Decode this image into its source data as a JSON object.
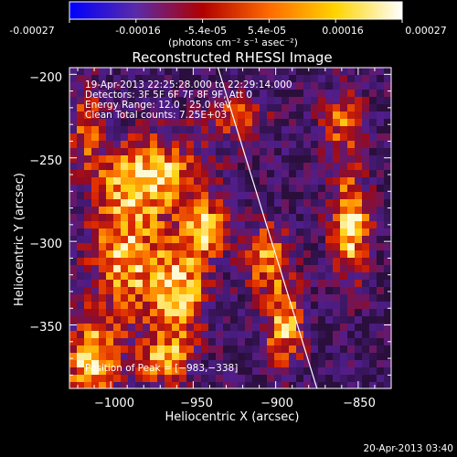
{
  "colorbar": {
    "tick_labels": [
      "-0.00027",
      "-0.00016",
      "-5.4e-05",
      "5.4e-05",
      "0.00016",
      "0.00027"
    ],
    "units_label": "(photons cm⁻² s⁻¹ asec⁻²)",
    "range": [
      -0.00027,
      0.00027
    ],
    "colormap": [
      "#0000ff",
      "#5a2aa8",
      "#b00000",
      "#ff6a00",
      "#ffd400",
      "#ffffff"
    ]
  },
  "chart_data": {
    "type": "heatmap",
    "title": "Reconstructed RHESSI Image",
    "xlabel": "Heliocentric X (arcsec)",
    "ylabel": "Heliocentric Y (arcsec)",
    "xlim": [
      -1025,
      -830
    ],
    "ylim": [
      -388,
      -196
    ],
    "x_ticks": [
      -1000,
      -950,
      -900,
      -850
    ],
    "y_ticks": [
      -200,
      -250,
      -300,
      -350
    ],
    "x_tick_labels": [
      "−1000",
      "−950",
      "−900",
      "−850"
    ],
    "y_tick_labels": [
      "−200",
      "−250",
      "−300",
      "−350"
    ],
    "annotations": [
      "19-Apr-2013 22:25:28.000 to 22:29:14.000",
      "Detectors: 3F 5F 6F 7F 8F 9F, Att 0",
      "Energy Range: 12.0 - 25.0 keV",
      "Clean     Total counts: 7.25E+03"
    ],
    "peak_label": "Position of Peak = [−983,−338]",
    "peak_position": [
      -983,
      -338
    ],
    "total_counts": 7250,
    "energy_range_kev": [
      12.0,
      25.0
    ],
    "limb_line": [
      [
        -935,
        -196
      ],
      [
        -875,
        -388
      ]
    ],
    "bright_sources": [
      {
        "x": -975,
        "y": -260,
        "w": 40,
        "h": 30,
        "i": 0.9
      },
      {
        "x": -992,
        "y": -310,
        "w": 28,
        "h": 50,
        "i": 0.85
      },
      {
        "x": -958,
        "y": -330,
        "w": 22,
        "h": 40,
        "i": 0.9
      },
      {
        "x": -1012,
        "y": -372,
        "w": 22,
        "h": 30,
        "i": 0.95
      },
      {
        "x": -968,
        "y": -372,
        "w": 18,
        "h": 18,
        "i": 0.8
      },
      {
        "x": -942,
        "y": -292,
        "w": 16,
        "h": 22,
        "i": 0.8
      },
      {
        "x": -905,
        "y": -310,
        "w": 18,
        "h": 28,
        "i": 0.75
      },
      {
        "x": -895,
        "y": -352,
        "w": 16,
        "h": 30,
        "i": 0.8
      },
      {
        "x": -855,
        "y": -290,
        "w": 16,
        "h": 40,
        "i": 1.0
      },
      {
        "x": -860,
        "y": -228,
        "w": 18,
        "h": 26,
        "i": 0.6
      },
      {
        "x": -925,
        "y": -225,
        "w": 26,
        "h": 18,
        "i": 0.55
      },
      {
        "x": -1015,
        "y": -230,
        "w": 12,
        "h": 30,
        "i": 0.6
      }
    ]
  },
  "footer": {
    "timestamp": "20-Apr-2013 03:40"
  }
}
